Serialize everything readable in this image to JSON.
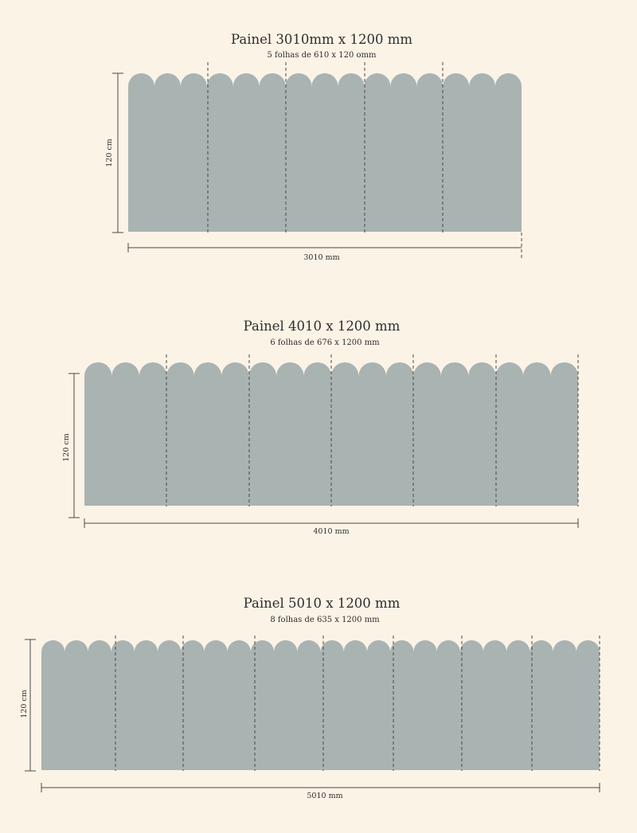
{
  "colors": {
    "background": "#fbf3e6",
    "panel": "#a9b3b1",
    "line": "#4a4a4a"
  },
  "panels": [
    {
      "title": "Painel 3010mm x 1200 mm",
      "subtitle": "5 folhas de 610 x 120 omm",
      "height_label": "120 cm",
      "width_label": "3010 mm",
      "sheets": 5,
      "scallops_per_sheet": 3
    },
    {
      "title": "Painel 4010 x 1200 mm",
      "subtitle": "6 folhas de 676 x 1200 mm",
      "height_label": "120 cm",
      "width_label": "4010 mm",
      "sheets": 6,
      "scallops_per_sheet": 3
    },
    {
      "title": "Painel 5010 x 1200 mm",
      "subtitle": "8 folhas de 635 x 1200 mm",
      "height_label": "120 cm",
      "width_label": "5010 mm",
      "sheets": 8,
      "scallops_per_sheet": 3
    }
  ]
}
